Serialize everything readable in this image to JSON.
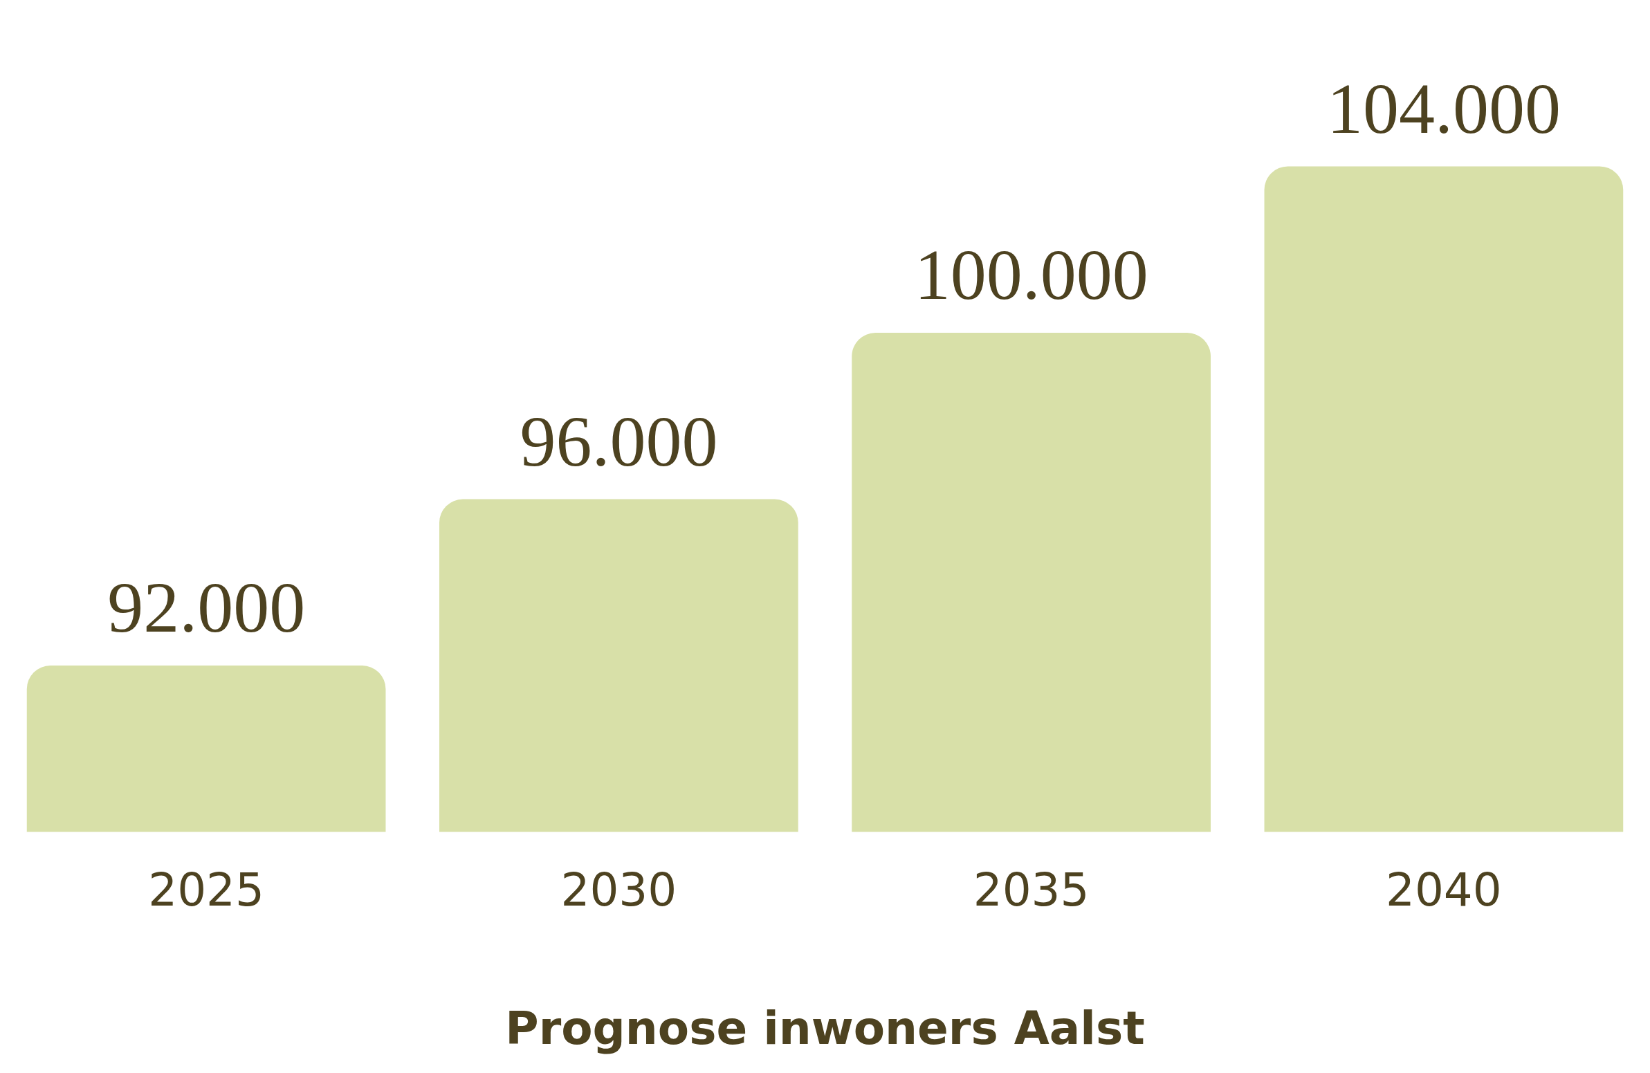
{
  "chart_data": {
    "type": "bar",
    "title": "Prognose inwoners Aalst",
    "categories": [
      "2025",
      "2030",
      "2035",
      "2040"
    ],
    "values": [
      92000,
      96000,
      100000,
      104000
    ],
    "value_labels": [
      "92.000",
      "96.000",
      "100.000",
      "104.000"
    ],
    "color": "#d8e0a8",
    "tick_labels": "x",
    "grid": false,
    "legend": false
  }
}
